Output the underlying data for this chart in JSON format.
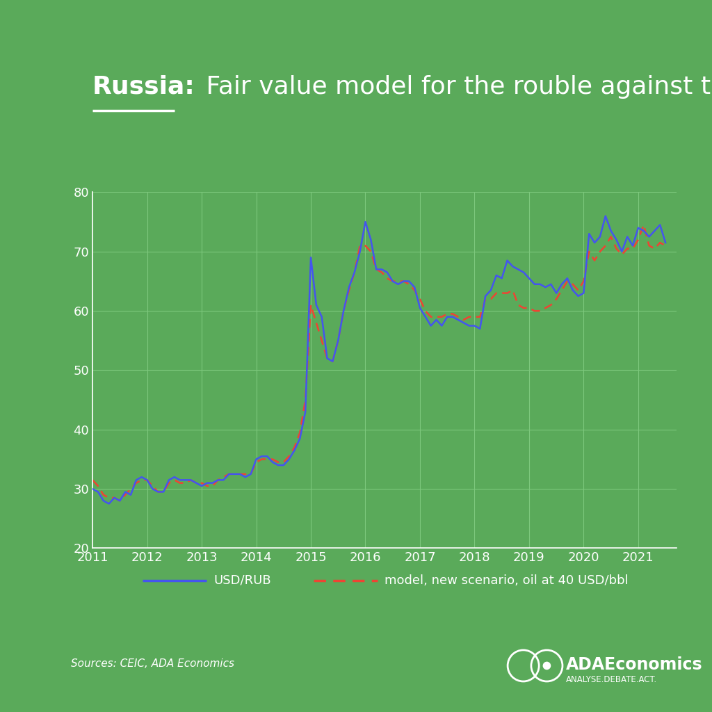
{
  "title_bold": "Russia:",
  "title_regular": " Fair value model for the rouble against the USD",
  "background_color": "#5aaa5a",
  "plot_background_color": "#5aaa5a",
  "grid_color": "#7dc87d",
  "line1_color": "#4455ee",
  "line2_color": "#ee4433",
  "line1_label": "USD/RUB",
  "line2_label": "model, new scenario, oil at 40 USD/bbl",
  "source_text": "Sources: CEIC, ADA Economics",
  "ylim": [
    20,
    80
  ],
  "yticks": [
    20,
    30,
    40,
    50,
    60,
    70,
    80
  ],
  "tick_color": "#ffffff",
  "usd_rub": [
    [
      2011.0,
      30.0
    ],
    [
      2011.1,
      29.5
    ],
    [
      2011.2,
      28.0
    ],
    [
      2011.3,
      27.5
    ],
    [
      2011.4,
      28.5
    ],
    [
      2011.5,
      28.0
    ],
    [
      2011.6,
      29.5
    ],
    [
      2011.7,
      29.0
    ],
    [
      2011.8,
      31.5
    ],
    [
      2011.9,
      32.0
    ],
    [
      2012.0,
      31.5
    ],
    [
      2012.1,
      30.0
    ],
    [
      2012.2,
      29.5
    ],
    [
      2012.3,
      29.5
    ],
    [
      2012.4,
      31.5
    ],
    [
      2012.5,
      32.0
    ],
    [
      2012.6,
      31.5
    ],
    [
      2012.7,
      31.5
    ],
    [
      2012.8,
      31.5
    ],
    [
      2012.9,
      31.0
    ],
    [
      2013.0,
      30.5
    ],
    [
      2013.1,
      31.0
    ],
    [
      2013.2,
      31.0
    ],
    [
      2013.3,
      31.5
    ],
    [
      2013.4,
      31.5
    ],
    [
      2013.5,
      32.5
    ],
    [
      2013.6,
      32.5
    ],
    [
      2013.7,
      32.5
    ],
    [
      2013.8,
      32.0
    ],
    [
      2013.9,
      32.5
    ],
    [
      2014.0,
      35.0
    ],
    [
      2014.1,
      35.5
    ],
    [
      2014.2,
      35.5
    ],
    [
      2014.3,
      34.5
    ],
    [
      2014.4,
      34.0
    ],
    [
      2014.5,
      34.0
    ],
    [
      2014.6,
      35.0
    ],
    [
      2014.7,
      36.5
    ],
    [
      2014.8,
      38.5
    ],
    [
      2014.9,
      43.0
    ],
    [
      2015.0,
      69.0
    ],
    [
      2015.1,
      61.0
    ],
    [
      2015.2,
      59.0
    ],
    [
      2015.3,
      52.0
    ],
    [
      2015.4,
      51.5
    ],
    [
      2015.5,
      55.0
    ],
    [
      2015.6,
      60.0
    ],
    [
      2015.7,
      64.0
    ],
    [
      2015.8,
      66.5
    ],
    [
      2015.9,
      70.0
    ],
    [
      2016.0,
      75.0
    ],
    [
      2016.1,
      72.0
    ],
    [
      2016.2,
      67.0
    ],
    [
      2016.3,
      67.0
    ],
    [
      2016.4,
      66.5
    ],
    [
      2016.5,
      65.0
    ],
    [
      2016.6,
      64.5
    ],
    [
      2016.7,
      65.0
    ],
    [
      2016.8,
      65.0
    ],
    [
      2016.9,
      64.0
    ],
    [
      2017.0,
      60.5
    ],
    [
      2017.1,
      59.0
    ],
    [
      2017.2,
      57.5
    ],
    [
      2017.3,
      58.5
    ],
    [
      2017.4,
      57.5
    ],
    [
      2017.5,
      59.0
    ],
    [
      2017.6,
      59.0
    ],
    [
      2017.7,
      58.5
    ],
    [
      2017.8,
      58.0
    ],
    [
      2017.9,
      57.5
    ],
    [
      2018.0,
      57.5
    ],
    [
      2018.1,
      57.0
    ],
    [
      2018.2,
      62.5
    ],
    [
      2018.3,
      63.5
    ],
    [
      2018.4,
      66.0
    ],
    [
      2018.5,
      65.5
    ],
    [
      2018.6,
      68.5
    ],
    [
      2018.7,
      67.5
    ],
    [
      2018.8,
      67.0
    ],
    [
      2018.9,
      66.5
    ],
    [
      2019.0,
      65.5
    ],
    [
      2019.1,
      64.5
    ],
    [
      2019.2,
      64.5
    ],
    [
      2019.3,
      64.0
    ],
    [
      2019.4,
      64.5
    ],
    [
      2019.5,
      63.0
    ],
    [
      2019.6,
      64.5
    ],
    [
      2019.7,
      65.5
    ],
    [
      2019.8,
      63.5
    ],
    [
      2019.9,
      62.5
    ],
    [
      2020.0,
      63.0
    ],
    [
      2020.1,
      73.0
    ],
    [
      2020.2,
      71.5
    ],
    [
      2020.3,
      72.5
    ],
    [
      2020.4,
      76.0
    ],
    [
      2020.5,
      73.5
    ],
    [
      2020.6,
      72.0
    ],
    [
      2020.7,
      70.0
    ],
    [
      2020.8,
      72.5
    ],
    [
      2020.9,
      71.0
    ],
    [
      2021.0,
      74.0
    ],
    [
      2021.1,
      73.5
    ],
    [
      2021.2,
      72.5
    ],
    [
      2021.3,
      73.5
    ],
    [
      2021.4,
      74.5
    ],
    [
      2021.5,
      71.5
    ]
  ],
  "model": [
    [
      2011.0,
      31.5
    ],
    [
      2011.1,
      30.5
    ],
    [
      2011.2,
      29.0
    ],
    [
      2011.3,
      28.5
    ],
    [
      2011.4,
      28.5
    ],
    [
      2011.5,
      28.0
    ],
    [
      2011.6,
      29.0
    ],
    [
      2011.7,
      30.0
    ],
    [
      2011.8,
      31.0
    ],
    [
      2011.9,
      31.5
    ],
    [
      2012.0,
      31.5
    ],
    [
      2012.1,
      30.5
    ],
    [
      2012.2,
      29.5
    ],
    [
      2012.3,
      29.5
    ],
    [
      2012.4,
      31.0
    ],
    [
      2012.5,
      31.5
    ],
    [
      2012.6,
      31.0
    ],
    [
      2012.7,
      31.0
    ],
    [
      2012.8,
      31.5
    ],
    [
      2012.9,
      31.0
    ],
    [
      2013.0,
      31.0
    ],
    [
      2013.1,
      30.5
    ],
    [
      2013.2,
      30.5
    ],
    [
      2013.3,
      31.5
    ],
    [
      2013.4,
      32.0
    ],
    [
      2013.5,
      32.5
    ],
    [
      2013.6,
      32.5
    ],
    [
      2013.7,
      32.5
    ],
    [
      2013.8,
      32.5
    ],
    [
      2013.9,
      32.5
    ],
    [
      2014.0,
      34.5
    ],
    [
      2014.1,
      35.0
    ],
    [
      2014.2,
      35.0
    ],
    [
      2014.3,
      35.0
    ],
    [
      2014.4,
      34.5
    ],
    [
      2014.5,
      34.5
    ],
    [
      2014.6,
      35.5
    ],
    [
      2014.7,
      37.0
    ],
    [
      2014.8,
      39.5
    ],
    [
      2014.9,
      45.0
    ],
    [
      2015.0,
      61.0
    ],
    [
      2015.1,
      58.0
    ],
    [
      2015.2,
      55.0
    ],
    [
      2015.3,
      52.0
    ],
    [
      2015.4,
      51.5
    ],
    [
      2015.5,
      55.0
    ],
    [
      2015.6,
      60.0
    ],
    [
      2015.7,
      63.5
    ],
    [
      2015.8,
      66.5
    ],
    [
      2015.9,
      71.0
    ],
    [
      2016.0,
      71.0
    ],
    [
      2016.1,
      70.0
    ],
    [
      2016.2,
      67.0
    ],
    [
      2016.3,
      66.5
    ],
    [
      2016.4,
      65.5
    ],
    [
      2016.5,
      65.0
    ],
    [
      2016.6,
      65.0
    ],
    [
      2016.7,
      65.0
    ],
    [
      2016.8,
      64.5
    ],
    [
      2016.9,
      63.5
    ],
    [
      2017.0,
      62.0
    ],
    [
      2017.1,
      60.0
    ],
    [
      2017.2,
      59.0
    ],
    [
      2017.3,
      59.0
    ],
    [
      2017.4,
      59.0
    ],
    [
      2017.5,
      59.5
    ],
    [
      2017.6,
      59.5
    ],
    [
      2017.7,
      59.0
    ],
    [
      2017.8,
      58.5
    ],
    [
      2017.9,
      59.0
    ],
    [
      2018.0,
      59.0
    ],
    [
      2018.1,
      59.0
    ],
    [
      2018.2,
      62.0
    ],
    [
      2018.3,
      62.0
    ],
    [
      2018.4,
      63.0
    ],
    [
      2018.5,
      63.0
    ],
    [
      2018.6,
      63.0
    ],
    [
      2018.7,
      63.5
    ],
    [
      2018.8,
      61.0
    ],
    [
      2018.9,
      60.5
    ],
    [
      2019.0,
      60.5
    ],
    [
      2019.1,
      60.0
    ],
    [
      2019.2,
      60.0
    ],
    [
      2019.3,
      60.5
    ],
    [
      2019.4,
      61.0
    ],
    [
      2019.5,
      62.0
    ],
    [
      2019.6,
      63.5
    ],
    [
      2019.7,
      65.0
    ],
    [
      2019.8,
      64.5
    ],
    [
      2019.9,
      63.5
    ],
    [
      2020.0,
      65.0
    ],
    [
      2020.1,
      70.0
    ],
    [
      2020.2,
      68.5
    ],
    [
      2020.3,
      70.0
    ],
    [
      2020.4,
      71.0
    ],
    [
      2020.5,
      72.5
    ],
    [
      2020.6,
      70.5
    ],
    [
      2020.7,
      69.5
    ],
    [
      2020.8,
      70.5
    ],
    [
      2020.9,
      70.5
    ],
    [
      2021.0,
      72.0
    ],
    [
      2021.1,
      74.5
    ],
    [
      2021.2,
      71.0
    ],
    [
      2021.3,
      70.5
    ],
    [
      2021.4,
      71.5
    ],
    [
      2021.5,
      71.0
    ]
  ],
  "xticks": [
    2011,
    2012,
    2013,
    2014,
    2015,
    2016,
    2017,
    2018,
    2019,
    2020,
    2021
  ]
}
